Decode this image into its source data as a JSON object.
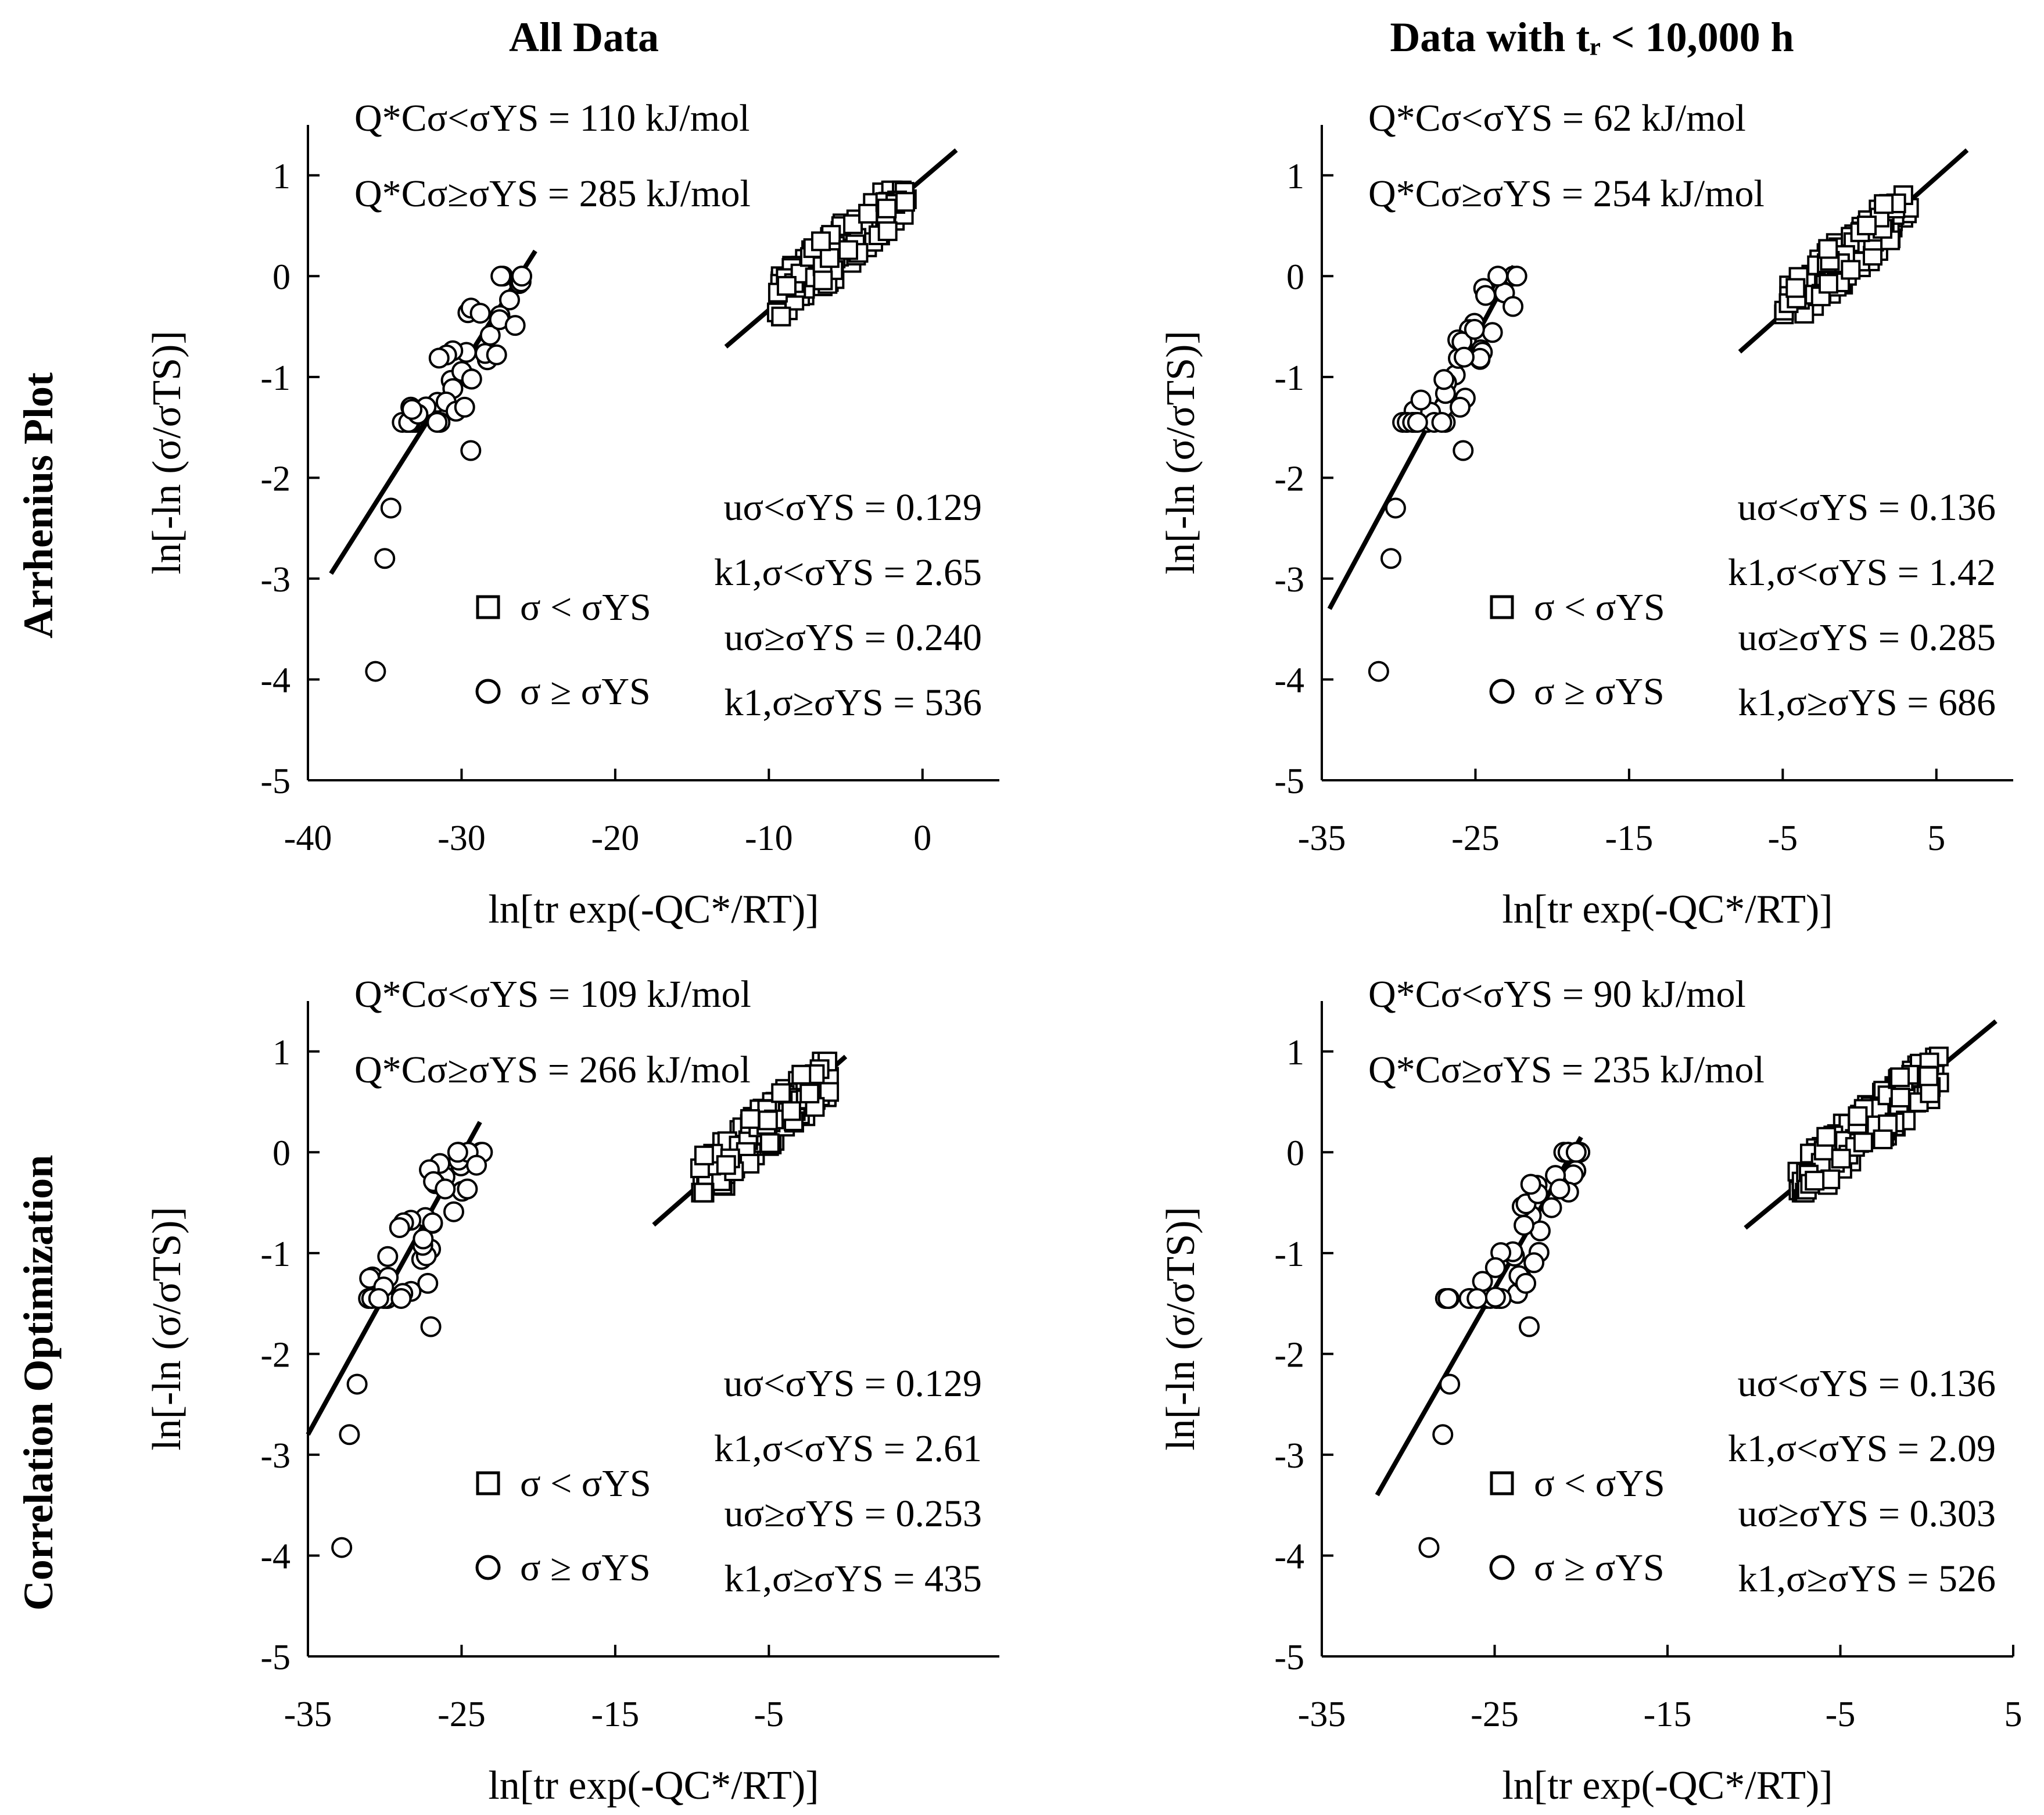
{
  "figure": {
    "col_titles": [
      "All Data",
      "Data with tᵣ < 10,000 h"
    ],
    "row_titles": [
      "Arrhenius Plot",
      "Correlation Optimization"
    ],
    "ylabel": "ln[-ln (σ/σTS)]",
    "xlabel": "ln[tr exp(-QC*/RT)]",
    "legend": [
      "σ < σYS",
      "σ ≥ σYS"
    ]
  },
  "chart_data": [
    {
      "type": "scatter",
      "id": "arrhenius-all",
      "xlim": [
        -40,
        5
      ],
      "ylim": [
        -5,
        1.5
      ],
      "xticks": [
        -40,
        -30,
        -20,
        -10,
        0
      ],
      "yticks": [
        -5,
        -4,
        -3,
        -2,
        -1,
        0,
        1
      ],
      "q_lines": [
        "Q*Cσ<σYS = 110 kJ/mol",
        "Q*Cσ≥σYS = 285 kJ/mol"
      ],
      "stats": [
        "uσ<σYS = 0.129",
        "k1,σ<σYS = 2.65",
        "uσ≥σYS = 0.240",
        "k1,σ≥σYS = 536"
      ],
      "fit_lines": [
        {
          "name": "circle-fit",
          "x": [
            -38.5,
            -25.2
          ],
          "y": [
            -2.95,
            0.25
          ]
        },
        {
          "name": "square-fit",
          "x": [
            -12.8,
            2.2
          ],
          "y": [
            -0.7,
            1.25
          ]
        }
      ],
      "circle_center": [
        -29.5,
        -0.75
      ],
      "circle_extra": [
        [
          -35.6,
          -3.92
        ],
        [
          -35.0,
          -2.8
        ],
        [
          -34.6,
          -2.3
        ],
        [
          -29.4,
          -1.73
        ],
        [
          -29.8,
          -1.3
        ]
      ],
      "square_cluster": {
        "x": [
          -9.5,
          -1.0
        ],
        "y": [
          -0.4,
          0.85
        ]
      }
    },
    {
      "type": "scatter",
      "id": "arrhenius-short",
      "xlim": [
        -35,
        10
      ],
      "ylim": [
        -5,
        1.5
      ],
      "xticks": [
        -35,
        -25,
        -15,
        -5,
        5
      ],
      "yticks": [
        -5,
        -4,
        -3,
        -2,
        -1,
        0,
        1
      ],
      "q_lines": [
        "Q*Cσ<σYS = 62 kJ/mol",
        "Q*Cσ≥σYS = 254 kJ/mol"
      ],
      "stats": [
        "uσ<σYS = 0.136",
        "k1,σ<σYS = 1.42",
        "uσ≥σYS = 0.285",
        "k1,σ≥σYS = 686"
      ],
      "fit_lines": [
        {
          "name": "circle-fit",
          "x": [
            -34.5,
            -22.5
          ],
          "y": [
            -3.3,
            0.1
          ]
        },
        {
          "name": "square-fit",
          "x": [
            -7.8,
            7.0
          ],
          "y": [
            -0.75,
            1.25
          ]
        }
      ],
      "circle_center": [
        -25.5,
        -0.7
      ],
      "circle_extra": [
        [
          -31.3,
          -3.92
        ],
        [
          -30.5,
          -2.8
        ],
        [
          -30.2,
          -2.3
        ],
        [
          -25.8,
          -1.73
        ],
        [
          -26.0,
          -1.3
        ]
      ],
      "square_cluster": {
        "x": [
          -5.0,
          3.5
        ],
        "y": [
          -0.4,
          0.9
        ]
      }
    },
    {
      "type": "scatter",
      "id": "correlation-all",
      "xlim": [
        -35,
        10
      ],
      "ylim": [
        -5,
        1.5
      ],
      "xticks": [
        -35,
        -25,
        -15,
        -5
      ],
      "yticks": [
        -5,
        -4,
        -3,
        -2,
        -1,
        0,
        1
      ],
      "q_lines": [
        "Q*Cσ<σYS = 109 kJ/mol",
        "Q*Cσ≥σYS = 266 kJ/mol"
      ],
      "stats": [
        "uσ<σYS = 0.129",
        "k1,σ<σYS = 2.61",
        "uσ≥σYS = 0.253",
        "k1,σ≥σYS = 435"
      ],
      "fit_lines": [
        {
          "name": "circle-fit",
          "x": [
            -35.0,
            -23.8
          ],
          "y": [
            -2.8,
            0.3
          ]
        },
        {
          "name": "square-fit",
          "x": [
            -12.5,
            0.0
          ],
          "y": [
            -0.72,
            0.95
          ]
        }
      ],
      "circle_center": [
        -27.0,
        -0.65
      ],
      "circle_extra": [
        [
          -32.8,
          -3.92
        ],
        [
          -32.3,
          -2.8
        ],
        [
          -31.8,
          -2.3
        ],
        [
          -27.0,
          -1.73
        ],
        [
          -27.2,
          -1.3
        ]
      ],
      "square_cluster": {
        "x": [
          -9.5,
          -1.0
        ],
        "y": [
          -0.4,
          0.9
        ]
      }
    },
    {
      "type": "scatter",
      "id": "correlation-short",
      "xlim": [
        -35,
        5
      ],
      "ylim": [
        -5,
        1.5
      ],
      "xticks": [
        -35,
        -25,
        -15,
        -5,
        5
      ],
      "yticks": [
        -5,
        -4,
        -3,
        -2,
        -1,
        0,
        1
      ],
      "q_lines": [
        "Q*Cσ<σYS = 90 kJ/mol",
        "Q*Cσ≥σYS = 235 kJ/mol"
      ],
      "stats": [
        "uσ<σYS = 0.136",
        "k1,σ<σYS = 2.09",
        "uσ≥σYS = 0.303",
        "k1,σ≥σYS = 526"
      ],
      "fit_lines": [
        {
          "name": "circle-fit",
          "x": [
            -31.8,
            -20.0
          ],
          "y": [
            -3.4,
            0.15
          ]
        },
        {
          "name": "square-fit",
          "x": [
            -10.5,
            4.0
          ],
          "y": [
            -0.75,
            1.3
          ]
        }
      ],
      "circle_center": [
        -23.5,
        -0.7
      ],
      "circle_extra": [
        [
          -28.8,
          -3.92
        ],
        [
          -28.0,
          -2.8
        ],
        [
          -27.6,
          -2.3
        ],
        [
          -23.0,
          -1.73
        ],
        [
          -23.2,
          -1.3
        ]
      ],
      "square_cluster": {
        "x": [
          -7.5,
          1.0
        ],
        "y": [
          -0.4,
          0.95
        ]
      }
    }
  ]
}
